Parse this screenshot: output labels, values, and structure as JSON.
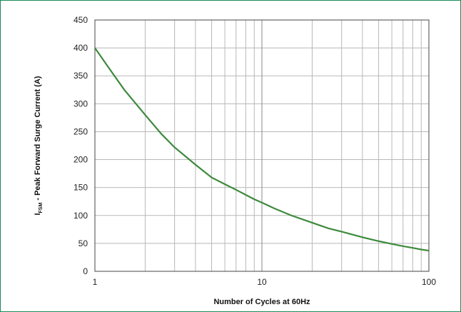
{
  "chart_data": {
    "type": "line",
    "xscale": "log",
    "xlim": [
      1,
      100
    ],
    "ylim": [
      0,
      450
    ],
    "yticks": [
      0,
      50,
      100,
      150,
      200,
      250,
      300,
      350,
      400,
      450
    ],
    "xticks": [
      1,
      10,
      100
    ],
    "xlabel": "Number of Cycles at 60Hz",
    "ylabel_main": "I",
    "ylabel_sub": "FSM",
    "ylabel_rest": " - Peak Forward Surge Current (A)",
    "grid": true,
    "line_color": "#3d8a3d",
    "frame_color": "#1a8a5a",
    "series": [
      {
        "x": [
          1,
          1.2,
          1.5,
          2,
          2.5,
          3,
          4,
          5,
          6,
          7,
          8,
          9,
          10,
          12,
          15,
          20,
          25,
          30,
          40,
          50,
          60,
          70,
          80,
          90,
          100
        ],
        "values": [
          400,
          366,
          325,
          280,
          246,
          222,
          191,
          168,
          156,
          146,
          137,
          129,
          123,
          112,
          100,
          87,
          77,
          71,
          61,
          54,
          49,
          45,
          42,
          39,
          37
        ]
      }
    ]
  }
}
